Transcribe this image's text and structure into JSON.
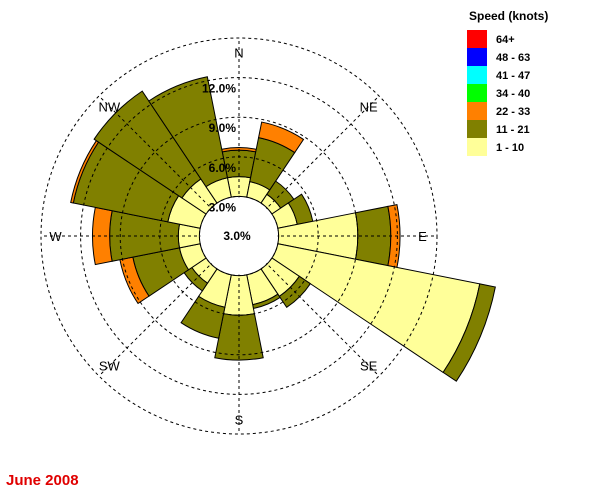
{
  "chart_data": {
    "type": "wind-rose",
    "title": "June 2008",
    "legend": {
      "title": "Speed (knots)",
      "placement": "top-right",
      "bins": [
        {
          "label": "64+",
          "color": "#ff0000"
        },
        {
          "label": "48 - 63",
          "color": "#0000ff"
        },
        {
          "label": "41 - 47",
          "color": "#00ffff"
        },
        {
          "label": "34 - 40",
          "color": "#00ff00"
        },
        {
          "label": "22 - 33",
          "color": "#ff8000"
        },
        {
          "label": "11 - 21",
          "color": "#808000"
        },
        {
          "label": "1 - 10",
          "color": "#ffff99"
        }
      ]
    },
    "compass_labels": [
      "N",
      "NE",
      "E",
      "SE",
      "S",
      "SW",
      "W",
      "NW"
    ],
    "rings": [
      {
        "value": 3,
        "label": "3.0%"
      },
      {
        "value": 6,
        "label": "6.0%"
      },
      {
        "value": 9,
        "label": "9.0%"
      },
      {
        "value": 12,
        "label": "12.0%"
      },
      {
        "value": 15,
        "label": ""
      }
    ],
    "center_calm_label": "3.0%",
    "center_offset_pct": 3,
    "sector_width_deg": 22.5,
    "sectors": [
      {
        "direction_deg": 0,
        "bands": [
          {
            "speed": "1 - 10",
            "pct": 1.5
          },
          {
            "speed": "11 - 21",
            "pct": 2.0
          },
          {
            "speed": "22 - 33",
            "pct": 0.2
          }
        ]
      },
      {
        "direction_deg": 22.5,
        "bands": [
          {
            "speed": "1 - 10",
            "pct": 1.2
          },
          {
            "speed": "11 - 21",
            "pct": 3.4
          },
          {
            "speed": "22 - 33",
            "pct": 1.2
          }
        ]
      },
      {
        "direction_deg": 45,
        "bands": [
          {
            "speed": "1 - 10",
            "pct": 0.8
          },
          {
            "speed": "11 - 21",
            "pct": 1.2
          }
        ]
      },
      {
        "direction_deg": 67.5,
        "bands": [
          {
            "speed": "1 - 10",
            "pct": 1.5
          },
          {
            "speed": "11 - 21",
            "pct": 1.2
          }
        ]
      },
      {
        "direction_deg": 90,
        "bands": [
          {
            "speed": "1 - 10",
            "pct": 6.0
          },
          {
            "speed": "11 - 21",
            "pct": 2.5
          },
          {
            "speed": "22 - 33",
            "pct": 0.7
          }
        ]
      },
      {
        "direction_deg": 112.5,
        "bands": [
          {
            "speed": "1 - 10",
            "pct": 15.6
          },
          {
            "speed": "11 - 21",
            "pct": 1.2
          }
        ]
      },
      {
        "direction_deg": 135,
        "bands": [
          {
            "speed": "1 - 10",
            "pct": 2.5
          },
          {
            "speed": "11 - 21",
            "pct": 1.0
          }
        ]
      },
      {
        "direction_deg": 157.5,
        "bands": [
          {
            "speed": "1 - 10",
            "pct": 2.3
          },
          {
            "speed": "11 - 21",
            "pct": 0.3
          }
        ]
      },
      {
        "direction_deg": 180,
        "bands": [
          {
            "speed": "1 - 10",
            "pct": 3.0
          },
          {
            "speed": "11 - 21",
            "pct": 3.4
          }
        ]
      },
      {
        "direction_deg": 202.5,
        "bands": [
          {
            "speed": "1 - 10",
            "pct": 2.5
          },
          {
            "speed": "11 - 21",
            "pct": 2.4
          }
        ]
      },
      {
        "direction_deg": 225,
        "bands": [
          {
            "speed": "1 - 10",
            "pct": 1.3
          },
          {
            "speed": "11 - 21",
            "pct": 0.7
          }
        ]
      },
      {
        "direction_deg": 247.5,
        "bands": [
          {
            "speed": "1 - 10",
            "pct": 1.6
          },
          {
            "speed": "11 - 21",
            "pct": 3.6
          },
          {
            "speed": "22 - 33",
            "pct": 1.0
          }
        ]
      },
      {
        "direction_deg": 270,
        "bands": [
          {
            "speed": "1 - 10",
            "pct": 1.6
          },
          {
            "speed": "11 - 21",
            "pct": 5.2
          },
          {
            "speed": "22 - 33",
            "pct": 1.3
          }
        ]
      },
      {
        "direction_deg": 292.5,
        "bands": [
          {
            "speed": "1 - 10",
            "pct": 2.5
          },
          {
            "speed": "11 - 21",
            "pct": 7.3
          },
          {
            "speed": "22 - 33",
            "pct": 0.2
          }
        ]
      },
      {
        "direction_deg": 315,
        "bands": [
          {
            "speed": "1 - 10",
            "pct": 2.2
          },
          {
            "speed": "11 - 21",
            "pct": 8.0
          }
        ]
      },
      {
        "direction_deg": 337.5,
        "bands": [
          {
            "speed": "1 - 10",
            "pct": 1.5
          },
          {
            "speed": "11 - 21",
            "pct": 7.8
          }
        ]
      }
    ]
  }
}
